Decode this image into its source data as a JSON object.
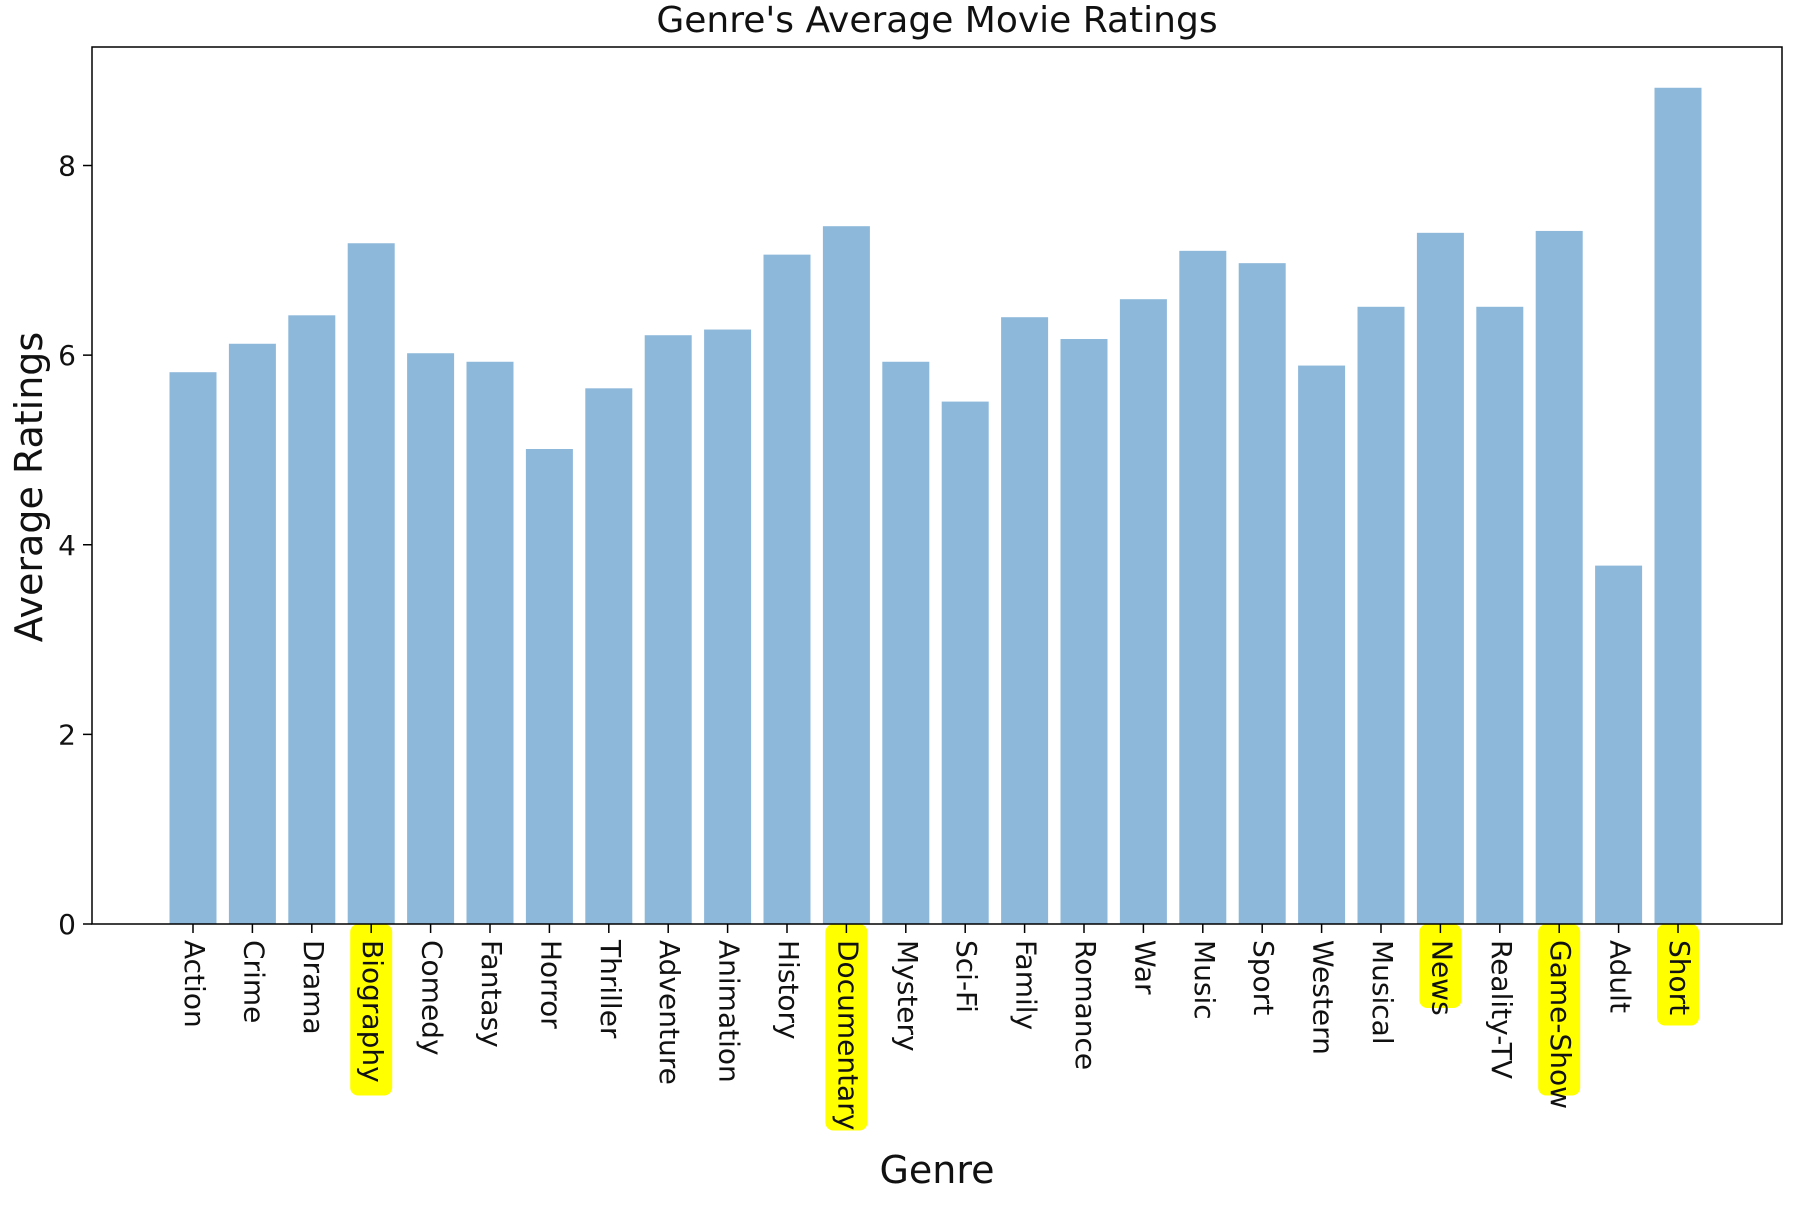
{
  "chart_data": {
    "type": "bar",
    "title": "Genre's Average Movie Ratings",
    "xlabel": "Genre",
    "ylabel": "Average Ratings",
    "categories": [
      "Action",
      "Crime",
      "Drama",
      "Biography",
      "Comedy",
      "Fantasy",
      "Horror",
      "Thriller",
      "Adventure",
      "Animation",
      "History",
      "Documentary",
      "Mystery",
      "Sci-Fi",
      "Family",
      "Romance",
      "War",
      "Music",
      "Sport",
      "Western",
      "Musical",
      "News",
      "Reality-TV",
      "Game-Show",
      "Adult",
      "Short"
    ],
    "values": [
      5.82,
      6.12,
      6.42,
      7.18,
      6.02,
      5.93,
      5.01,
      5.65,
      6.21,
      6.27,
      7.06,
      7.36,
      5.93,
      5.51,
      6.4,
      6.17,
      6.59,
      7.1,
      6.97,
      5.89,
      6.51,
      7.29,
      6.51,
      7.31,
      3.78,
      8.82
    ],
    "ylim": [
      0,
      9.25
    ],
    "yticks": [
      "0",
      "2",
      "4",
      "6",
      "8"
    ],
    "bar_color": "#8db8da",
    "grid": false,
    "highlighted_labels": [
      "Biography",
      "Documentary",
      "News",
      "Game-Show",
      "Short"
    ],
    "highlight_color": "#ffff00"
  }
}
